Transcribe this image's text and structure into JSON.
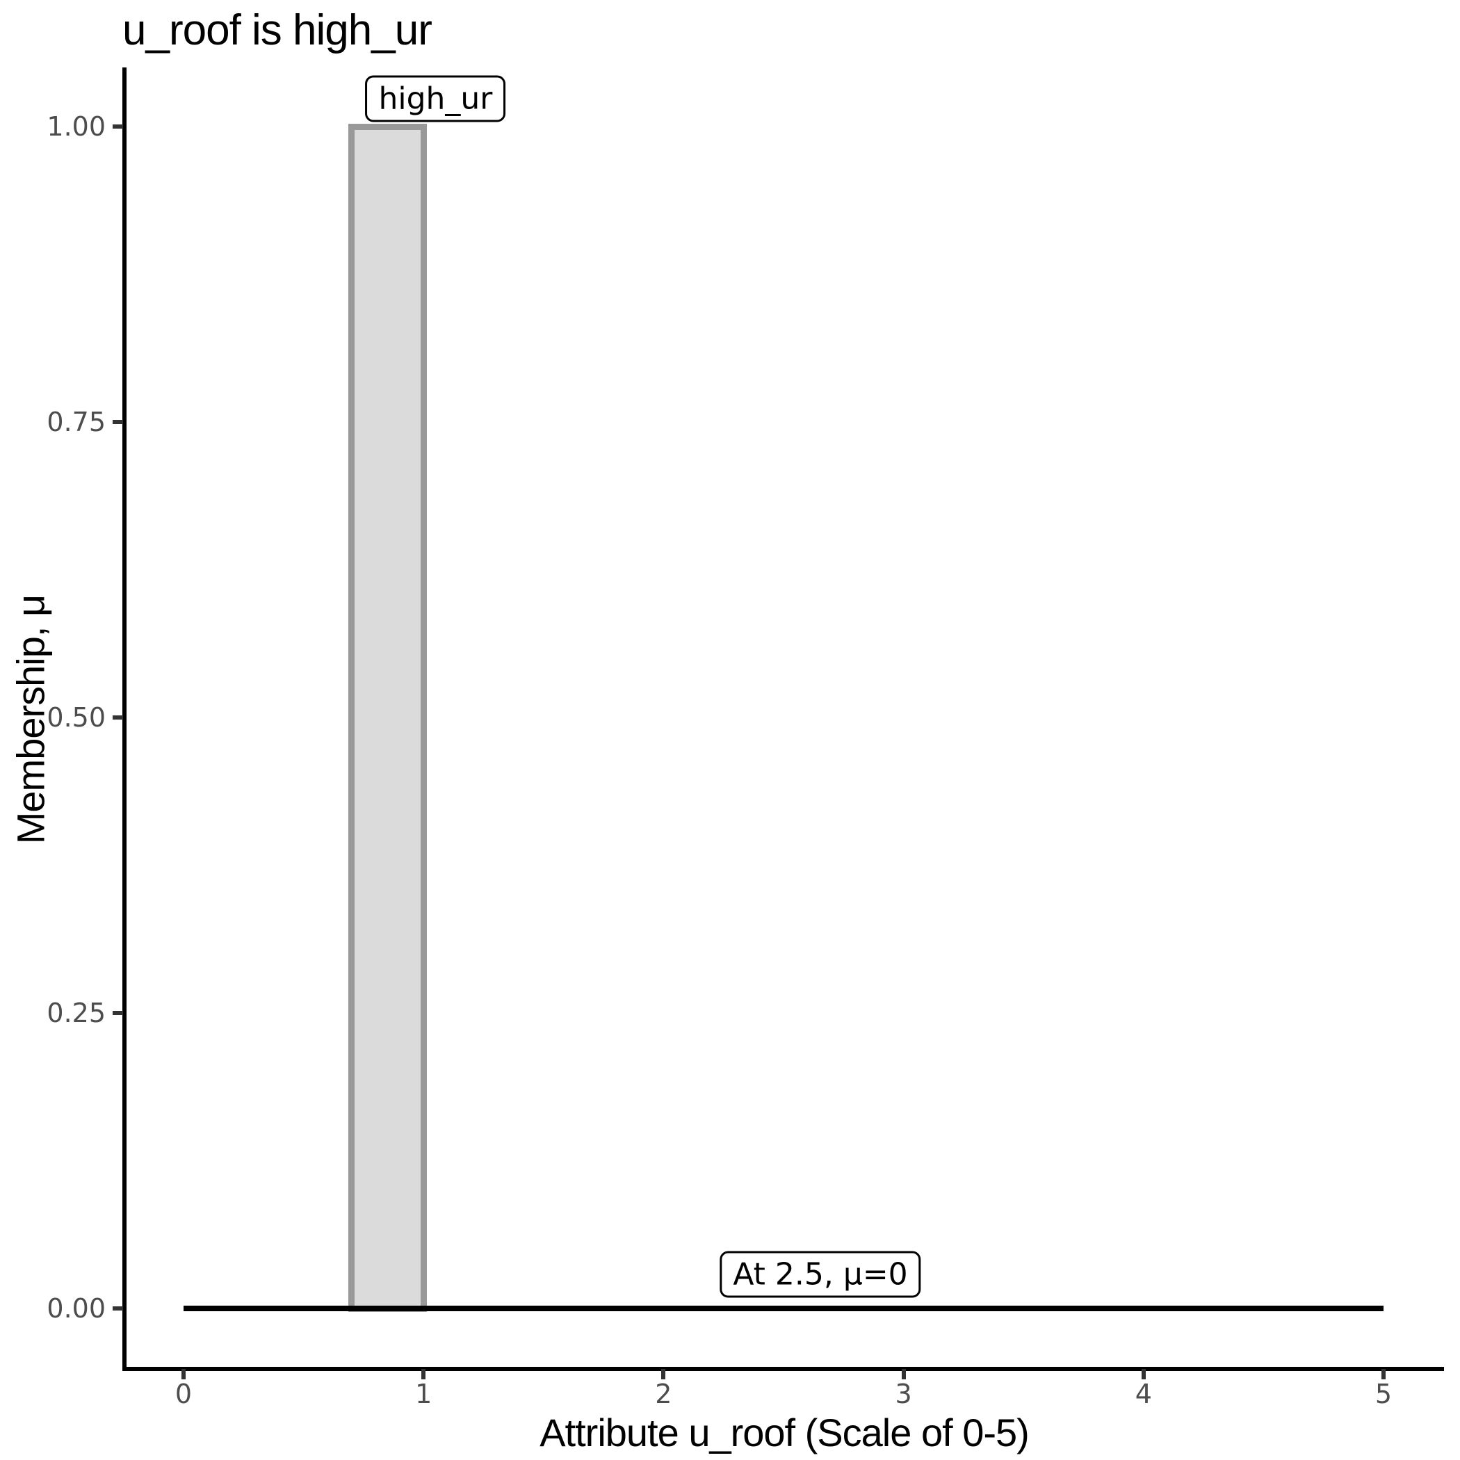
{
  "chart_data": {
    "type": "area",
    "title": "u_roof is high_ur",
    "xlabel": "Attribute u_roof (Scale of 0-5)",
    "ylabel": "Membership, μ",
    "xlim": [
      0,
      5
    ],
    "ylim": [
      0,
      1
    ],
    "grid": false,
    "legend": "none",
    "background": "#FFFFFF",
    "x_ticks": [
      {
        "label": "0",
        "value": 0
      },
      {
        "label": "1",
        "value": 1
      },
      {
        "label": "2",
        "value": 2
      },
      {
        "label": "3",
        "value": 3
      },
      {
        "label": "4",
        "value": 4
      },
      {
        "label": "5",
        "value": 5
      }
    ],
    "y_ticks": [
      {
        "label": "0.00",
        "value": 0.0
      },
      {
        "label": "0.25",
        "value": 0.25
      },
      {
        "label": "0.50",
        "value": 0.5
      },
      {
        "label": "0.75",
        "value": 0.75
      },
      {
        "label": "1.00",
        "value": 1.0
      }
    ],
    "series": [
      {
        "name": "high_ur",
        "shape": "rect",
        "x_start": 0.7,
        "x_end": 1.0,
        "y_start": 0.0,
        "y_end": 1.0,
        "fill": "#DBDBDB",
        "stroke": "#999999"
      },
      {
        "name": "zero-membership-line",
        "shape": "hline",
        "x_start": 0,
        "x_end": 5,
        "y": 0,
        "color": "#000000"
      }
    ],
    "annotations": [
      {
        "label": "high_ur",
        "x": 0.85,
        "y": 1.0
      },
      {
        "label": "At 2.5, μ=0",
        "x": 2.5,
        "y": 0.0
      }
    ],
    "colors": {
      "axis_text": "#4D4D4D",
      "axis_line": "#000000",
      "tick_mark": "#333333",
      "title": "#000000"
    }
  }
}
